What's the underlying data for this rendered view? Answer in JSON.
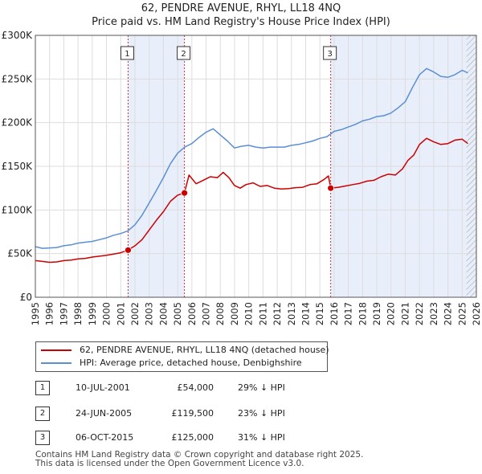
{
  "title": "62, PENDRE AVENUE, RHYL, LL18 4NQ",
  "subtitle": "Price paid vs. HM Land Registry's House Price Index (HPI)",
  "colors": {
    "property": "#cc0000",
    "hpi": "#5b8fd4",
    "shade": "#e8eefa",
    "grid": "#dddddd",
    "hatch": "#999999"
  },
  "chart_data": {
    "type": "line",
    "title": "62, PENDRE AVENUE, RHYL, LL18 4NQ",
    "xlabel": "",
    "ylabel": "",
    "xlim": [
      1995,
      2026
    ],
    "ylim": [
      0,
      300000
    ],
    "x_ticks": [
      "1995",
      "1996",
      "1997",
      "1998",
      "1999",
      "2000",
      "2001",
      "2002",
      "2003",
      "2004",
      "2005",
      "2006",
      "2007",
      "2008",
      "2009",
      "2010",
      "2011",
      "2012",
      "2013",
      "2014",
      "2015",
      "2016",
      "2017",
      "2018",
      "2019",
      "2020",
      "2021",
      "2022",
      "2023",
      "2024",
      "2025",
      "2026"
    ],
    "y_ticks": [
      {
        "value": 0,
        "label": "£0"
      },
      {
        "value": 50000,
        "label": "£50K"
      },
      {
        "value": 100000,
        "label": "£100K"
      },
      {
        "value": 150000,
        "label": "£150K"
      },
      {
        "value": 200000,
        "label": "£200K"
      },
      {
        "value": 250000,
        "label": "£250K"
      },
      {
        "value": 300000,
        "label": "£300K"
      }
    ],
    "hatch_from_year": 2025.3,
    "shaded_ranges": [
      [
        2001.52,
        2005.48
      ],
      [
        2015.76,
        2026
      ]
    ],
    "series": [
      {
        "name": "62, PENDRE AVENUE, RHYL, LL18 4NQ (detached house)",
        "x": [
          1995.0,
          1995.5,
          1996.0,
          1996.5,
          1997.0,
          1997.5,
          1998.0,
          1998.5,
          1999.0,
          1999.5,
          2000.0,
          2000.5,
          2001.0,
          2001.52,
          2002.0,
          2002.5,
          2003.0,
          2003.5,
          2004.0,
          2004.5,
          2005.0,
          2005.48,
          2005.8,
          2006.3,
          2006.8,
          2007.3,
          2007.8,
          2008.2,
          2008.6,
          2009.0,
          2009.4,
          2009.8,
          2010.3,
          2010.8,
          2011.3,
          2011.8,
          2012.3,
          2012.8,
          2013.3,
          2013.8,
          2014.3,
          2014.8,
          2015.3,
          2015.6,
          2015.76,
          2016.3,
          2016.8,
          2017.3,
          2017.8,
          2018.3,
          2018.8,
          2019.3,
          2019.8,
          2020.3,
          2020.8,
          2021.2,
          2021.6,
          2022.0,
          2022.5,
          2023.0,
          2023.5,
          2024.0,
          2024.5,
          2025.0,
          2025.4
        ],
        "values": [
          42000,
          41000,
          40000,
          40500,
          42000,
          42500,
          44000,
          44500,
          46000,
          47000,
          48000,
          49500,
          51000,
          54000,
          59000,
          66000,
          77000,
          88000,
          98000,
          110000,
          117000,
          119500,
          140000,
          130000,
          134000,
          138000,
          137000,
          143000,
          137000,
          128000,
          125000,
          129000,
          131000,
          127000,
          128000,
          125000,
          124000,
          124500,
          125500,
          126000,
          129000,
          130000,
          135000,
          139000,
          125000,
          126000,
          127500,
          129000,
          130500,
          133000,
          134000,
          138000,
          141000,
          140000,
          147000,
          157000,
          163000,
          175000,
          182000,
          178000,
          175000,
          176000,
          180000,
          181000,
          176000
        ]
      },
      {
        "name": "HPI: Average price, detached house, Denbighshire",
        "x": [
          1995.0,
          1995.5,
          1996.0,
          1996.5,
          1997.0,
          1997.5,
          1998.0,
          1998.5,
          1999.0,
          1999.5,
          2000.0,
          2000.5,
          2001.0,
          2001.5,
          2002.0,
          2002.5,
          2003.0,
          2003.5,
          2004.0,
          2004.5,
          2005.0,
          2005.5,
          2006.0,
          2006.5,
          2007.0,
          2007.5,
          2008.0,
          2008.5,
          2009.0,
          2009.5,
          2010.0,
          2010.5,
          2011.0,
          2011.5,
          2012.0,
          2012.5,
          2013.0,
          2013.5,
          2014.0,
          2014.5,
          2015.0,
          2015.5,
          2016.0,
          2016.5,
          2017.0,
          2017.5,
          2018.0,
          2018.5,
          2019.0,
          2019.5,
          2020.0,
          2020.5,
          2021.0,
          2021.5,
          2022.0,
          2022.5,
          2023.0,
          2023.5,
          2024.0,
          2024.5,
          2025.0,
          2025.4
        ],
        "values": [
          58000,
          56000,
          56500,
          57000,
          59000,
          60000,
          62000,
          63000,
          64000,
          66000,
          68000,
          71000,
          73000,
          76000,
          83000,
          94000,
          108000,
          122000,
          137000,
          153000,
          165000,
          172000,
          176000,
          183000,
          189000,
          193000,
          186000,
          179000,
          171000,
          173000,
          174000,
          172000,
          171000,
          172000,
          172000,
          172000,
          174000,
          175000,
          177000,
          179000,
          182000,
          184000,
          190000,
          192000,
          195000,
          198000,
          202000,
          204000,
          207000,
          208000,
          211000,
          217000,
          224000,
          240000,
          255000,
          262000,
          258000,
          253000,
          252000,
          255000,
          260000,
          257000
        ]
      }
    ],
    "sales": [
      {
        "marker": "1",
        "x": 2001.52,
        "value": 54000
      },
      {
        "marker": "2",
        "x": 2005.48,
        "value": 119500
      },
      {
        "marker": "3",
        "x": 2015.76,
        "value": 125000
      }
    ]
  },
  "legend": {
    "property_label": "62, PENDRE AVENUE, RHYL, LL18 4NQ (detached house)",
    "hpi_label": "HPI: Average price, detached house, Denbighshire"
  },
  "sales_table": [
    {
      "marker": "1",
      "date": "10-JUL-2001",
      "price": "£54,000",
      "hpi_diff": "29% ↓ HPI"
    },
    {
      "marker": "2",
      "date": "24-JUN-2005",
      "price": "£119,500",
      "hpi_diff": "23% ↓ HPI"
    },
    {
      "marker": "3",
      "date": "06-OCT-2015",
      "price": "£125,000",
      "hpi_diff": "31% ↓ HPI"
    }
  ],
  "footer": {
    "line1": "Contains HM Land Registry data © Crown copyright and database right 2025.",
    "line2": "This data is licensed under the Open Government Licence v3.0."
  }
}
